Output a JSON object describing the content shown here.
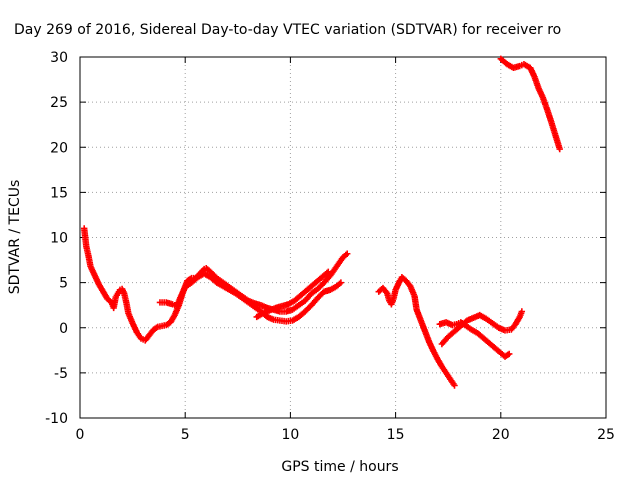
{
  "chart_data": {
    "type": "scatter",
    "title": "Day 269 of 2016, Sidereal Day-to-day VTEC variation (SDTVAR) for receiver ro",
    "xlabel": "GPS time / hours",
    "ylabel": "SDTVAR / TECUs",
    "xlim": [
      0,
      25
    ],
    "ylim": [
      -10,
      30
    ],
    "xticks": [
      "0",
      "5",
      "10",
      "15",
      "20",
      "25"
    ],
    "yticks": [
      "-10",
      "-5",
      "0",
      "5",
      "10",
      "15",
      "20",
      "25",
      "30"
    ],
    "grid": true,
    "marker": "plus",
    "color": "#ff0000",
    "series": [
      {
        "points": [
          [
            0.2,
            11.0
          ],
          [
            0.25,
            10.0
          ],
          [
            0.3,
            9.0
          ],
          [
            0.4,
            8.0
          ],
          [
            0.5,
            6.8
          ],
          [
            0.7,
            5.8
          ],
          [
            0.9,
            4.8
          ],
          [
            1.1,
            4.0
          ],
          [
            1.3,
            3.2
          ],
          [
            1.5,
            2.8
          ],
          [
            1.6,
            2.2
          ],
          [
            1.7,
            3.4
          ],
          [
            1.8,
            3.8
          ],
          [
            1.9,
            4.2
          ],
          [
            2.0,
            4.3
          ],
          [
            2.1,
            3.8
          ],
          [
            2.2,
            2.8
          ],
          [
            2.3,
            1.6
          ],
          [
            2.5,
            0.5
          ],
          [
            2.7,
            -0.5
          ],
          [
            2.9,
            -1.2
          ],
          [
            3.1,
            -1.4
          ],
          [
            3.3,
            -0.8
          ],
          [
            3.5,
            -0.2
          ],
          [
            3.7,
            0.1
          ],
          [
            3.9,
            0.2
          ],
          [
            4.1,
            0.3
          ],
          [
            4.3,
            0.6
          ],
          [
            4.5,
            1.4
          ],
          [
            4.7,
            2.5
          ],
          [
            4.9,
            4.0
          ],
          [
            5.1,
            5.2
          ],
          [
            5.3,
            5.5
          ],
          [
            5.5,
            5.5
          ],
          [
            5.7,
            6.0
          ],
          [
            5.9,
            6.5
          ],
          [
            6.0,
            6.6
          ],
          [
            6.2,
            6.2
          ],
          [
            6.5,
            5.5
          ],
          [
            6.8,
            5.0
          ],
          [
            7.1,
            4.5
          ],
          [
            7.4,
            4.0
          ],
          [
            7.7,
            3.5
          ],
          [
            8.0,
            3.0
          ],
          [
            8.3,
            2.7
          ],
          [
            8.6,
            2.5
          ],
          [
            8.9,
            2.2
          ],
          [
            9.2,
            2.0
          ],
          [
            9.5,
            1.8
          ],
          [
            9.8,
            1.8
          ],
          [
            10.1,
            2.0
          ],
          [
            10.4,
            2.5
          ],
          [
            10.7,
            3.0
          ],
          [
            11.0,
            3.8
          ],
          [
            11.3,
            4.3
          ],
          [
            11.6,
            5.0
          ],
          [
            11.9,
            5.8
          ],
          [
            12.2,
            6.8
          ],
          [
            12.5,
            7.8
          ],
          [
            12.7,
            8.2
          ]
        ]
      },
      {
        "points": [
          [
            3.8,
            2.8
          ],
          [
            4.1,
            2.8
          ],
          [
            4.4,
            2.6
          ],
          [
            4.6,
            2.4
          ],
          [
            4.8,
            3.5
          ],
          [
            5.0,
            4.5
          ],
          [
            5.3,
            5.0
          ],
          [
            5.6,
            5.6
          ],
          [
            5.9,
            6.0
          ],
          [
            6.2,
            5.6
          ],
          [
            6.5,
            5.0
          ],
          [
            6.8,
            4.6
          ],
          [
            7.1,
            4.2
          ],
          [
            7.4,
            3.8
          ],
          [
            7.7,
            3.3
          ],
          [
            8.0,
            2.8
          ],
          [
            8.3,
            2.3
          ],
          [
            8.6,
            1.8
          ],
          [
            8.9,
            1.2
          ],
          [
            9.2,
            0.9
          ],
          [
            9.5,
            0.8
          ],
          [
            9.8,
            0.7
          ],
          [
            10.1,
            0.8
          ],
          [
            10.4,
            1.2
          ],
          [
            10.7,
            1.8
          ],
          [
            11.0,
            2.5
          ],
          [
            11.3,
            3.3
          ],
          [
            11.6,
            4.0
          ],
          [
            11.9,
            4.2
          ],
          [
            12.2,
            4.6
          ],
          [
            12.4,
            5.0
          ]
        ]
      },
      {
        "points": [
          [
            8.4,
            1.2
          ],
          [
            8.7,
            1.6
          ],
          [
            9.0,
            1.9
          ],
          [
            9.3,
            2.2
          ],
          [
            9.6,
            2.4
          ],
          [
            9.9,
            2.6
          ],
          [
            10.2,
            3.0
          ],
          [
            10.5,
            3.6
          ],
          [
            10.8,
            4.2
          ],
          [
            11.1,
            4.8
          ],
          [
            11.4,
            5.4
          ],
          [
            11.6,
            5.8
          ],
          [
            11.8,
            6.2
          ]
        ]
      },
      {
        "points": [
          [
            14.2,
            4.0
          ],
          [
            14.4,
            4.4
          ],
          [
            14.6,
            3.8
          ],
          [
            14.7,
            3.0
          ],
          [
            14.8,
            2.6
          ],
          [
            14.9,
            3.2
          ],
          [
            15.0,
            4.2
          ],
          [
            15.2,
            5.2
          ],
          [
            15.3,
            5.6
          ],
          [
            15.5,
            5.2
          ],
          [
            15.7,
            4.6
          ],
          [
            15.9,
            3.5
          ],
          [
            16.0,
            2.0
          ],
          [
            16.2,
            0.8
          ],
          [
            16.4,
            -0.4
          ],
          [
            16.6,
            -1.6
          ],
          [
            16.8,
            -2.6
          ],
          [
            17.0,
            -3.5
          ],
          [
            17.2,
            -4.3
          ],
          [
            17.4,
            -5.0
          ],
          [
            17.6,
            -5.7
          ],
          [
            17.8,
            -6.4
          ]
        ]
      },
      {
        "points": [
          [
            17.2,
            -1.8
          ],
          [
            17.5,
            -1.0
          ],
          [
            17.8,
            -0.4
          ],
          [
            18.1,
            0.2
          ],
          [
            18.4,
            0.8
          ],
          [
            18.7,
            1.1
          ],
          [
            19.0,
            1.4
          ],
          [
            19.3,
            1.0
          ],
          [
            19.6,
            0.5
          ],
          [
            19.9,
            0.0
          ],
          [
            20.2,
            -0.3
          ],
          [
            20.5,
            -0.2
          ],
          [
            20.7,
            0.4
          ],
          [
            20.9,
            1.2
          ],
          [
            21.0,
            1.8
          ]
        ]
      },
      {
        "points": [
          [
            17.1,
            0.4
          ],
          [
            17.4,
            0.6
          ],
          [
            17.7,
            0.3
          ],
          [
            17.9,
            0.4
          ],
          [
            18.1,
            0.6
          ],
          [
            18.3,
            0.3
          ],
          [
            18.6,
            -0.2
          ],
          [
            18.9,
            -0.6
          ],
          [
            19.2,
            -1.2
          ],
          [
            19.5,
            -1.8
          ],
          [
            19.8,
            -2.4
          ],
          [
            20.0,
            -2.8
          ],
          [
            20.2,
            -3.2
          ],
          [
            20.4,
            -2.9
          ]
        ]
      },
      {
        "points": [
          [
            20.0,
            29.8
          ],
          [
            20.3,
            29.2
          ],
          [
            20.6,
            28.8
          ],
          [
            20.9,
            29.0
          ],
          [
            21.1,
            29.2
          ],
          [
            21.4,
            28.8
          ],
          [
            21.6,
            27.8
          ],
          [
            21.8,
            26.5
          ],
          [
            22.0,
            25.5
          ],
          [
            22.2,
            24.2
          ],
          [
            22.4,
            22.8
          ],
          [
            22.6,
            21.3
          ],
          [
            22.8,
            19.8
          ]
        ]
      }
    ]
  }
}
